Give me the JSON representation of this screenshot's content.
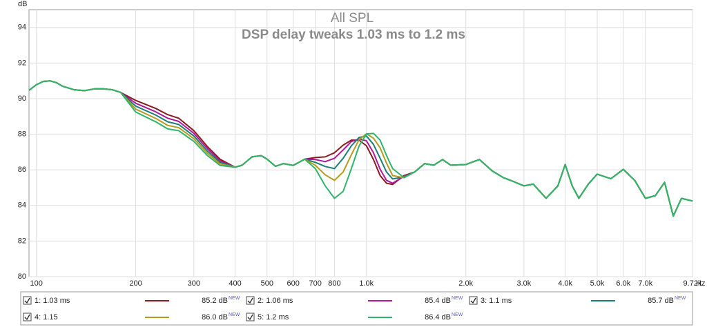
{
  "chart_data": {
    "type": "line",
    "title": "All SPL",
    "subtitle": "DSP delay tweaks 1.03 ms to 1.2 ms",
    "y_label": "dB",
    "x_label": "Hz",
    "log_x": true,
    "grid": true,
    "legend_badge": "NEW",
    "xlim": [
      95,
      9720
    ],
    "ylim": [
      80,
      95
    ],
    "yticks": [
      80,
      82,
      84,
      86,
      88,
      90,
      92,
      94
    ],
    "xticks": [
      100,
      200,
      300,
      400,
      500,
      600,
      700,
      800,
      {
        "value": 1000,
        "label": "1.0k"
      },
      {
        "value": 2000,
        "label": "2.0k"
      },
      {
        "value": 3000,
        "label": "3.0k"
      },
      {
        "value": 4000,
        "label": "4.0k"
      },
      {
        "value": 5000,
        "label": "5.0k"
      },
      {
        "value": 6000,
        "label": "6.0k"
      },
      {
        "value": 7000,
        "label": "7.0k"
      },
      {
        "value": 9720,
        "label": "9.72k"
      }
    ],
    "x": [
      95,
      100,
      105,
      110,
      115,
      120,
      130,
      140,
      150,
      160,
      170,
      180,
      200,
      230,
      250,
      270,
      300,
      330,
      360,
      400,
      420,
      450,
      480,
      500,
      530,
      560,
      600,
      650,
      700,
      750,
      800,
      850,
      900,
      950,
      1000,
      1050,
      1100,
      1150,
      1200,
      1300,
      1400,
      1500,
      1600,
      1700,
      1800,
      2000,
      2200,
      2400,
      2600,
      2800,
      3000,
      3200,
      3500,
      3800,
      4000,
      4200,
      4400,
      4700,
      5000,
      5500,
      6000,
      6500,
      7000,
      7500,
      8000,
      8500,
      9000,
      9720
    ],
    "series": [
      {
        "name": "1: 1.03 ms",
        "color": "#8b1a1a",
        "level": "85.2 dB",
        "values": [
          90.47,
          90.78,
          90.97,
          91.0,
          90.9,
          90.7,
          90.5,
          90.45,
          90.55,
          90.55,
          90.5,
          90.35,
          89.9,
          89.45,
          89.1,
          88.9,
          88.2,
          87.3,
          86.6,
          86.15,
          86.26,
          86.73,
          86.8,
          86.6,
          86.2,
          86.35,
          86.25,
          86.6,
          86.69,
          86.73,
          86.96,
          87.39,
          87.67,
          87.67,
          87.35,
          86.58,
          85.68,
          85.25,
          85.18,
          85.68,
          85.88,
          86.35,
          86.26,
          86.58,
          86.26,
          86.3,
          86.58,
          85.95,
          85.56,
          85.33,
          85.1,
          85.2,
          84.4,
          85.1,
          86.3,
          85.1,
          84.4,
          85.2,
          85.76,
          85.5,
          86.03,
          85.4,
          84.4,
          84.55,
          85.3,
          83.4,
          84.4,
          84.25
        ]
      },
      {
        "name": "2: 1.06 ms",
        "color": "#b0179b",
        "level": "85.4 dB",
        "values": [
          90.47,
          90.78,
          90.97,
          91.0,
          90.9,
          90.7,
          90.5,
          90.45,
          90.55,
          90.55,
          90.5,
          90.35,
          89.74,
          89.26,
          88.9,
          88.72,
          88.05,
          87.18,
          86.51,
          86.15,
          86.26,
          86.73,
          86.8,
          86.6,
          86.2,
          86.35,
          86.25,
          86.6,
          86.58,
          86.46,
          86.65,
          87.12,
          87.59,
          87.74,
          87.63,
          86.96,
          86.03,
          85.41,
          85.25,
          85.64,
          85.88,
          86.35,
          86.26,
          86.58,
          86.26,
          86.3,
          86.58,
          85.95,
          85.56,
          85.33,
          85.1,
          85.2,
          84.4,
          85.1,
          86.3,
          85.1,
          84.4,
          85.2,
          85.76,
          85.5,
          86.03,
          85.4,
          84.4,
          84.55,
          85.3,
          83.4,
          84.4,
          84.25
        ]
      },
      {
        "name": "3: 1.1 ms",
        "color": "#1a7f7a",
        "level": "85.7 dB",
        "values": [
          90.47,
          90.78,
          90.97,
          91.0,
          90.9,
          90.7,
          90.5,
          90.45,
          90.55,
          90.55,
          90.5,
          90.35,
          89.58,
          89.08,
          88.7,
          88.55,
          87.9,
          87.05,
          86.43,
          86.15,
          86.26,
          86.73,
          86.8,
          86.6,
          86.2,
          86.35,
          86.25,
          86.6,
          86.42,
          86.19,
          86.07,
          86.65,
          87.35,
          87.82,
          87.9,
          87.43,
          86.65,
          85.88,
          85.49,
          85.6,
          85.88,
          86.35,
          86.26,
          86.58,
          86.26,
          86.3,
          86.58,
          85.95,
          85.56,
          85.33,
          85.1,
          85.2,
          84.4,
          85.1,
          86.3,
          85.1,
          84.4,
          85.2,
          85.76,
          85.5,
          86.03,
          85.4,
          84.4,
          84.55,
          85.3,
          83.4,
          84.4,
          84.25
        ]
      },
      {
        "name": "4: 1.15",
        "color": "#b59a1c",
        "level": "86.0 dB",
        "values": [
          90.47,
          90.78,
          90.97,
          91.0,
          90.9,
          90.7,
          90.5,
          90.45,
          90.55,
          90.55,
          90.5,
          90.35,
          89.41,
          88.89,
          88.5,
          88.37,
          87.75,
          86.93,
          86.34,
          86.15,
          86.26,
          86.73,
          86.8,
          86.6,
          86.2,
          86.35,
          86.25,
          86.6,
          86.26,
          85.72,
          85.41,
          85.88,
          86.85,
          87.7,
          88.02,
          87.78,
          87.24,
          86.38,
          85.68,
          85.56,
          85.88,
          86.35,
          86.26,
          86.58,
          86.26,
          86.3,
          86.58,
          85.95,
          85.56,
          85.33,
          85.1,
          85.2,
          84.4,
          85.1,
          86.3,
          85.1,
          84.4,
          85.2,
          85.76,
          85.5,
          86.03,
          85.4,
          84.4,
          84.55,
          85.3,
          83.4,
          84.4,
          84.25
        ]
      },
      {
        "name": "5: 1.2 ms",
        "color": "#2db56a",
        "level": "86.4 dB",
        "values": [
          90.47,
          90.78,
          90.97,
          91.0,
          90.9,
          90.7,
          90.5,
          90.45,
          90.55,
          90.55,
          90.5,
          90.35,
          89.25,
          88.7,
          88.3,
          88.2,
          87.6,
          86.8,
          86.25,
          86.15,
          86.26,
          86.73,
          86.8,
          86.6,
          86.2,
          86.35,
          86.25,
          86.6,
          86.07,
          85.1,
          84.4,
          84.79,
          86.07,
          87.35,
          88.02,
          88.05,
          87.67,
          86.81,
          86.07,
          85.56,
          85.88,
          86.35,
          86.26,
          86.58,
          86.26,
          86.3,
          86.58,
          85.95,
          85.56,
          85.33,
          85.1,
          85.2,
          84.4,
          85.1,
          86.3,
          85.1,
          84.4,
          85.2,
          85.76,
          85.5,
          86.03,
          85.4,
          84.4,
          84.55,
          85.3,
          83.4,
          84.4,
          84.25
        ]
      }
    ]
  }
}
